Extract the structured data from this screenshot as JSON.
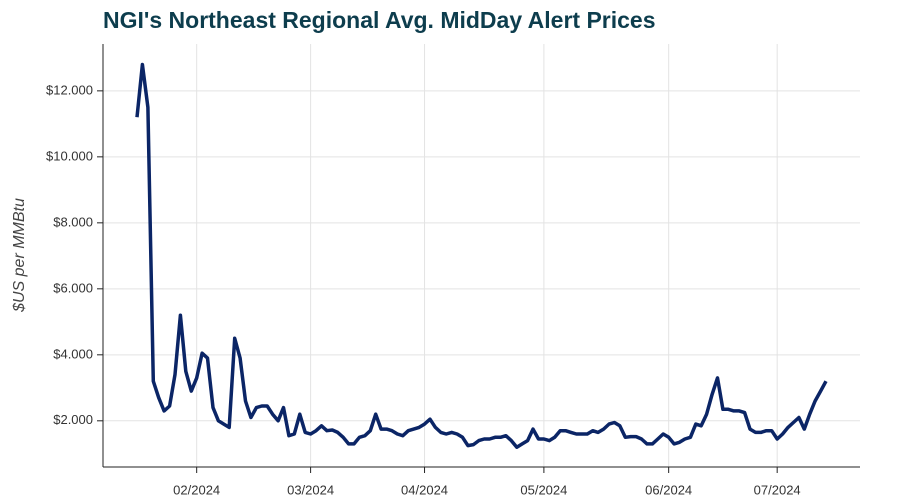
{
  "chart_data": {
    "type": "line",
    "title": "NGI's Northeast Regional Avg. MidDay Alert Prices",
    "y_label": "$US per MMBtu",
    "categories": [
      null,
      null,
      null,
      null,
      null,
      null,
      null,
      null,
      null,
      null,
      null,
      "02/2024",
      null,
      null,
      null,
      null,
      null,
      null,
      null,
      null,
      null,
      null,
      null,
      null,
      null,
      null,
      null,
      null,
      null,
      null,
      null,
      null,
      "03/2024",
      null,
      null,
      null,
      null,
      null,
      null,
      null,
      null,
      null,
      null,
      null,
      null,
      null,
      null,
      null,
      null,
      null,
      null,
      null,
      null,
      "04/2024",
      null,
      null,
      null,
      null,
      null,
      null,
      null,
      null,
      null,
      null,
      null,
      null,
      null,
      null,
      null,
      null,
      null,
      null,
      null,
      null,
      null,
      "05/2024",
      null,
      null,
      null,
      null,
      null,
      null,
      null,
      null,
      null,
      null,
      null,
      null,
      null,
      null,
      null,
      null,
      null,
      null,
      null,
      null,
      null,
      null,
      "06/2024",
      null,
      null,
      null,
      null,
      null,
      null,
      null,
      null,
      null,
      null,
      null,
      null,
      null,
      null,
      null,
      null,
      null,
      null,
      null,
      "07/2024",
      null,
      null,
      null,
      null,
      null,
      null,
      null,
      null,
      null
    ],
    "values": [
      11.2,
      12.8,
      11.5,
      3.2,
      2.7,
      2.3,
      2.45,
      3.4,
      5.2,
      3.5,
      2.9,
      3.3,
      4.05,
      3.9,
      2.4,
      2.0,
      1.9,
      1.8,
      4.5,
      3.9,
      2.6,
      2.1,
      2.4,
      2.45,
      2.45,
      2.2,
      2.0,
      2.4,
      1.55,
      1.6,
      2.2,
      1.65,
      1.6,
      1.7,
      1.85,
      1.7,
      1.72,
      1.65,
      1.5,
      1.3,
      1.3,
      1.5,
      1.55,
      1.7,
      2.2,
      1.75,
      1.75,
      1.7,
      1.6,
      1.55,
      1.7,
      1.75,
      1.8,
      1.9,
      2.05,
      1.8,
      1.65,
      1.6,
      1.65,
      1.6,
      1.5,
      1.25,
      1.28,
      1.4,
      1.45,
      1.45,
      1.5,
      1.5,
      1.55,
      1.4,
      1.2,
      1.3,
      1.4,
      1.75,
      1.45,
      1.45,
      1.4,
      1.5,
      1.7,
      1.7,
      1.65,
      1.6,
      1.6,
      1.6,
      1.7,
      1.65,
      1.75,
      1.9,
      1.95,
      1.85,
      1.5,
      1.52,
      1.52,
      1.45,
      1.3,
      1.3,
      1.45,
      1.6,
      1.5,
      1.3,
      1.35,
      1.45,
      1.5,
      1.9,
      1.85,
      2.2,
      2.8,
      3.3,
      2.35,
      2.35,
      2.3,
      2.3,
      2.25,
      1.75,
      1.65,
      1.65,
      1.7,
      1.7,
      1.45,
      1.6,
      1.8,
      1.95,
      2.1,
      1.75,
      2.2,
      2.6,
      2.9,
      3.2
    ],
    "color": "#0b2566",
    "ylim": [
      0.6,
      13.42
    ],
    "yticks": [
      {
        "value": 2,
        "label": "$2.000"
      },
      {
        "value": 4,
        "label": "$4.000"
      },
      {
        "value": 6,
        "label": "$6.000"
      },
      {
        "value": 8,
        "label": "$8.000"
      },
      {
        "value": 10,
        "label": "$10.000"
      },
      {
        "value": 12,
        "label": "$12.000"
      }
    ],
    "grid": true
  }
}
